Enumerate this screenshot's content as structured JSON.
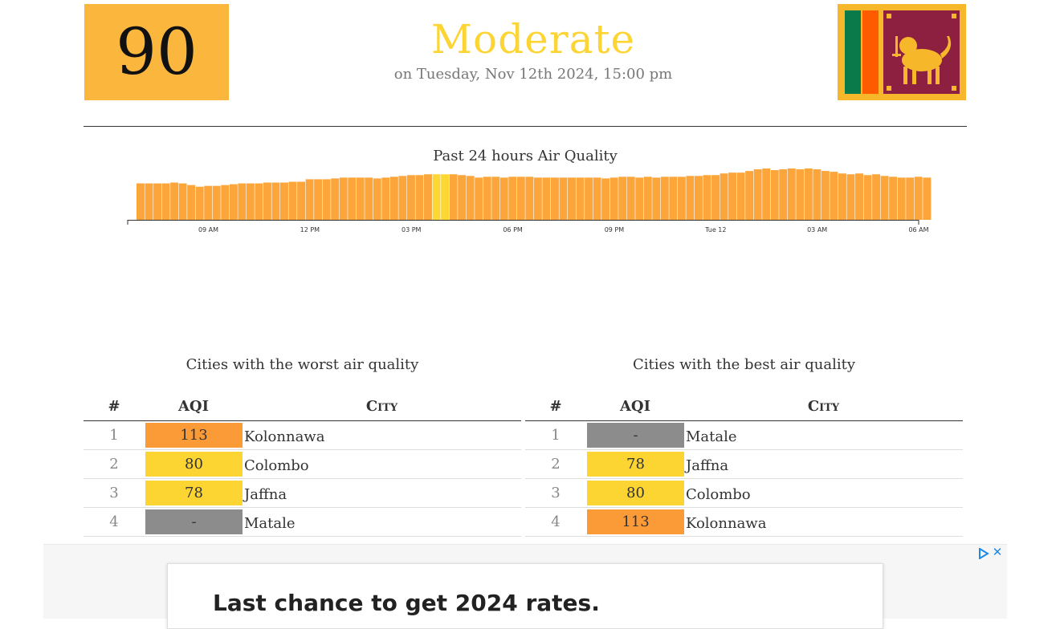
{
  "header": {
    "aqi": "90",
    "level": "Moderate",
    "date": "on Tuesday, Nov 12th 2024, 15:00 pm",
    "aqi_color": "#fbb73d",
    "level_color": "#fcd535",
    "flag_icon": "sri-lanka-flag-icon"
  },
  "chart": {
    "title": "Past 24 hours Air Quality",
    "chart_data": {
      "type": "bar",
      "xlabel": "",
      "ylabel": "",
      "ticks": [
        {
          "label": "09 AM",
          "index": 8
        },
        {
          "label": "12 PM",
          "index": 20
        },
        {
          "label": "03 PM",
          "index": 32
        },
        {
          "label": "06 PM",
          "index": 44
        },
        {
          "label": "09 PM",
          "index": 56
        },
        {
          "label": "Tue 12",
          "index": 68
        },
        {
          "label": "03 AM",
          "index": 80
        },
        {
          "label": "06 AM",
          "index": 92
        }
      ],
      "highlight_indices": [
        35,
        36
      ],
      "values": [
        44,
        44,
        44,
        44,
        45,
        44,
        42,
        40,
        41,
        41,
        42,
        43,
        44,
        44,
        44,
        45,
        45,
        45,
        46,
        46,
        49,
        49,
        49,
        50,
        51,
        51,
        51,
        51,
        50,
        51,
        52,
        53,
        54,
        54,
        55,
        55,
        55,
        55,
        54,
        53,
        51,
        52,
        52,
        51,
        52,
        52,
        52,
        51,
        51,
        51,
        51,
        51,
        51,
        51,
        51,
        50,
        51,
        52,
        52,
        51,
        52,
        51,
        52,
        52,
        52,
        53,
        53,
        54,
        54,
        56,
        57,
        57,
        59,
        61,
        62,
        60,
        61,
        62,
        61,
        62,
        61,
        59,
        58,
        56,
        55,
        56,
        54,
        55,
        53,
        52,
        51,
        51,
        52,
        51,
        50
      ]
    }
  },
  "worst": {
    "title": "Cities with the worst air quality",
    "head_num": "#",
    "head_aqi": "AQI",
    "head_city": "City",
    "rows": [
      {
        "num": "1",
        "aqi": "113",
        "city": "Kolonnawa",
        "color": "#fb9b37"
      },
      {
        "num": "2",
        "aqi": "80",
        "city": "Colombo",
        "color": "#fdd533"
      },
      {
        "num": "3",
        "aqi": "78",
        "city": "Jaffna",
        "color": "#fdd533"
      },
      {
        "num": "4",
        "aqi": "-",
        "city": "Matale",
        "color": "#8c8c8c"
      }
    ]
  },
  "best": {
    "title": "Cities with the best air quality",
    "head_num": "#",
    "head_aqi": "AQI",
    "head_city": "City",
    "rows": [
      {
        "num": "1",
        "aqi": "-",
        "city": "Matale",
        "color": "#8c8c8c"
      },
      {
        "num": "2",
        "aqi": "78",
        "city": "Jaffna",
        "color": "#fdd533"
      },
      {
        "num": "3",
        "aqi": "80",
        "city": "Colombo",
        "color": "#fdd533"
      },
      {
        "num": "4",
        "aqi": "113",
        "city": "Kolonnawa",
        "color": "#fb9b37"
      }
    ]
  },
  "ad": {
    "text": "Last chance to get 2024 rates.",
    "choices_icon": "ad-choices-icon",
    "close_label": "✕"
  }
}
